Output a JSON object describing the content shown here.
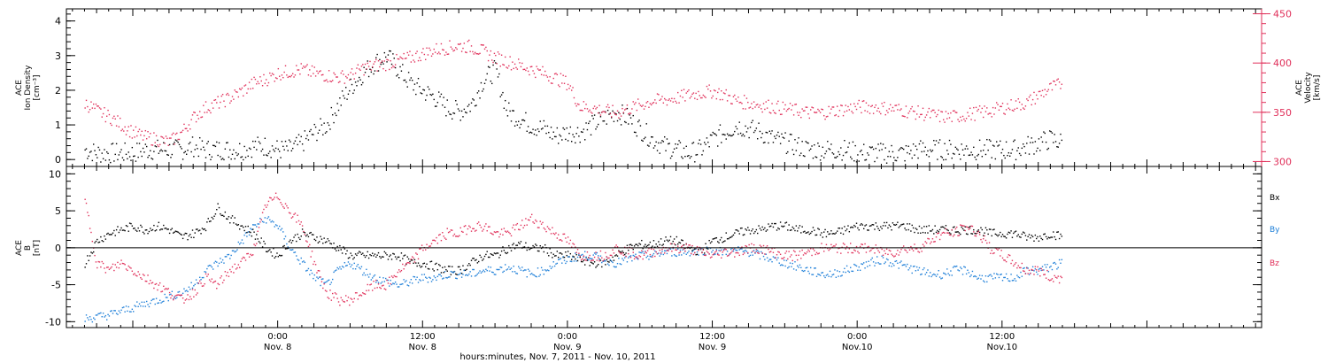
{
  "chart_data": [
    {
      "type": "scatter",
      "panel": "top",
      "ylabel_left_lines": [
        "ACE",
        "Ion Density",
        "[cm⁻³]"
      ],
      "ylabel_right_lines": [
        "ACE",
        "Velocity",
        "[km/s]"
      ],
      "y_left_ticks": [
        "0",
        "1",
        "2",
        "3",
        "4"
      ],
      "y_left_range": [
        -0.2,
        4.35
      ],
      "y_right_ticks": [
        "300",
        "350",
        "400",
        "450"
      ],
      "y_right_range": [
        295,
        455
      ],
      "series": [
        {
          "name": "Ion Density",
          "color": "#000000",
          "axis": "left",
          "x": [
            -16,
            -15,
            -14,
            -13,
            -12,
            -11,
            -10,
            -9,
            -8,
            -7,
            -6,
            -5,
            -4,
            -3,
            -2,
            -1,
            0,
            1,
            2,
            3,
            4,
            5,
            6,
            7,
            8,
            9,
            10,
            11,
            12,
            13,
            14,
            15,
            16,
            17,
            18,
            19,
            20,
            21,
            22,
            23,
            24,
            25,
            26,
            27,
            28,
            29,
            30,
            31,
            32,
            33,
            34,
            35,
            36,
            37,
            38,
            39,
            40,
            41,
            42,
            43,
            44,
            45,
            46,
            47,
            48,
            49,
            50,
            51,
            52,
            53,
            54,
            55,
            56,
            57,
            58,
            59,
            60,
            61,
            62,
            63,
            64,
            65
          ],
          "values": [
            0.3,
            0.2,
            0.2,
            0.2,
            0.2,
            0.3,
            0.3,
            0.3,
            0.3,
            0.4,
            0.3,
            0.3,
            0.3,
            0.3,
            0.4,
            0.4,
            0.3,
            0.3,
            0.5,
            0.8,
            1.0,
            1.6,
            2.1,
            2.5,
            2.8,
            3.0,
            2.6,
            2.2,
            2.0,
            1.8,
            1.5,
            1.4,
            1.6,
            2.3,
            2.6,
            1.4,
            1.2,
            1.0,
            0.9,
            0.7,
            0.8,
            0.8,
            1.0,
            1.2,
            1.4,
            1.2,
            0.9,
            0.6,
            0.4,
            0.3,
            0.2,
            0.3,
            0.6,
            0.8,
            1.0,
            0.9,
            0.8,
            0.6,
            0.5,
            0.4,
            0.3,
            0.3,
            0.3,
            0.3,
            0.2,
            0.2,
            0.2,
            0.2,
            0.2,
            0.3,
            0.3,
            0.3,
            0.3,
            0.3,
            0.3,
            0.3,
            0.3,
            0.3,
            0.4,
            0.5,
            0.6,
            0.5
          ]
        },
        {
          "name": "Velocity",
          "color": "#e0305a",
          "axis": "right",
          "x": [
            -16,
            -15,
            -14,
            -13,
            -12,
            -11,
            -10,
            -9,
            -8,
            -7,
            -6,
            -5,
            -4,
            -3,
            -2,
            -1,
            0,
            1,
            2,
            3,
            4,
            5,
            6,
            7,
            8,
            9,
            10,
            11,
            12,
            13,
            14,
            15,
            16,
            17,
            18,
            19,
            20,
            21,
            22,
            23,
            24,
            25,
            26,
            27,
            28,
            29,
            30,
            31,
            32,
            33,
            34,
            35,
            36,
            37,
            38,
            39,
            40,
            41,
            42,
            43,
            44,
            45,
            46,
            47,
            48,
            49,
            50,
            51,
            52,
            53,
            54,
            55,
            56,
            57,
            58,
            59,
            60,
            61,
            62,
            63,
            64,
            65
          ],
          "values": [
            360,
            352,
            346,
            338,
            330,
            325,
            323,
            320,
            330,
            345,
            355,
            360,
            365,
            372,
            380,
            384,
            390,
            392,
            394,
            390,
            388,
            386,
            388,
            395,
            398,
            400,
            403,
            406,
            410,
            414,
            416,
            418,
            417,
            412,
            406,
            402,
            398,
            394,
            390,
            385,
            380,
            356,
            355,
            352,
            350,
            354,
            358,
            362,
            363,
            365,
            368,
            370,
            372,
            368,
            362,
            360,
            358,
            356,
            354,
            352,
            350,
            350,
            352,
            354,
            356,
            356,
            355,
            354,
            352,
            350,
            348,
            346,
            346,
            348,
            350,
            352,
            355,
            358,
            360,
            368,
            375,
            380
          ]
        }
      ]
    },
    {
      "type": "scatter",
      "panel": "bottom",
      "ylabel_lines": [
        "ACE",
        "B",
        "[nT]"
      ],
      "y_ticks": [
        "-10",
        "-5",
        "0",
        "5",
        "10"
      ],
      "y_range": [
        -10.8,
        11.0
      ],
      "zero_line": true,
      "legend": [
        "Bx",
        "By",
        "Bz"
      ],
      "series": [
        {
          "name": "Bx",
          "color": "#000000",
          "x": [
            -16,
            -15,
            -14,
            -13,
            -12,
            -11,
            -10,
            -9,
            -8,
            -7,
            -6,
            -5,
            -4,
            -3,
            -2,
            -1,
            0,
            1,
            2,
            3,
            4,
            5,
            6,
            7,
            8,
            9,
            10,
            11,
            12,
            13,
            14,
            15,
            16,
            17,
            18,
            19,
            20,
            21,
            22,
            23,
            24,
            25,
            26,
            27,
            28,
            29,
            30,
            31,
            32,
            33,
            34,
            35,
            36,
            37,
            38,
            39,
            40,
            41,
            42,
            43,
            44,
            45,
            46,
            47,
            48,
            49,
            50,
            51,
            52,
            53,
            54,
            55,
            56,
            57,
            58,
            59,
            60,
            61,
            62,
            63,
            64,
            65
          ],
          "values": [
            -2,
            1,
            2,
            2.5,
            3,
            2.5,
            3,
            2.5,
            1.5,
            2,
            3,
            5.5,
            4,
            3,
            2,
            0,
            -1,
            1,
            2,
            1.5,
            1,
            0,
            -1,
            -1,
            -1,
            -1,
            -1,
            -2,
            -2,
            -2.5,
            -3,
            -3,
            -2,
            -1,
            -1,
            0,
            0.5,
            0,
            0,
            -1,
            -1,
            -1.5,
            -2,
            -2,
            -1,
            0,
            0.5,
            0.5,
            1,
            1,
            0,
            -0.5,
            1,
            1.5,
            2,
            2.5,
            2.5,
            3,
            3,
            2.5,
            2.5,
            2,
            2,
            2.5,
            3,
            3,
            3,
            3,
            3,
            2.5,
            2.5,
            2.5,
            2.5,
            2.5,
            2.5,
            2,
            2,
            2,
            1.5,
            1.5,
            2,
            1.5
          ]
        },
        {
          "name": "By",
          "color": "#1e7fd8",
          "x": [
            -16,
            -15,
            -14,
            -13,
            -12,
            -11,
            -10,
            -9,
            -8,
            -7,
            -6,
            -5,
            -4,
            -3,
            -2,
            -1,
            0,
            1,
            2,
            3,
            4,
            5,
            6,
            7,
            8,
            9,
            10,
            11,
            12,
            13,
            14,
            15,
            16,
            17,
            18,
            19,
            20,
            21,
            22,
            23,
            24,
            25,
            26,
            27,
            28,
            29,
            30,
            31,
            32,
            33,
            34,
            35,
            36,
            37,
            38,
            39,
            40,
            41,
            42,
            43,
            44,
            45,
            46,
            47,
            48,
            49,
            50,
            51,
            52,
            53,
            54,
            55,
            56,
            57,
            58,
            59,
            60,
            61,
            62,
            63,
            64,
            65
          ],
          "values": [
            -9.5,
            -9.3,
            -9,
            -8.5,
            -8,
            -7.5,
            -7,
            -6.5,
            -6,
            -5,
            -3,
            -2,
            -1,
            1,
            3,
            4,
            3,
            0,
            -2,
            -4,
            -5,
            -3,
            -2,
            -3,
            -4,
            -4.5,
            -5,
            -4.5,
            -4,
            -4,
            -3.5,
            -3.5,
            -3.5,
            -3,
            -3,
            -2.5,
            -3,
            -3.5,
            -3,
            -2,
            -1.5,
            -1,
            -1,
            -1.5,
            -2,
            -1.5,
            -1,
            -1,
            -0.5,
            -0.5,
            -0.5,
            -0.3,
            -0.3,
            -0.5,
            -0.3,
            -0.5,
            -1,
            -1.5,
            -2,
            -2.5,
            -3,
            -3.5,
            -3.5,
            -3,
            -2.5,
            -2,
            -1.5,
            -2,
            -2.5,
            -3,
            -3.5,
            -3.5,
            -3,
            -3,
            -4,
            -4,
            -4,
            -4,
            -3,
            -3,
            -2.5,
            -2
          ]
        },
        {
          "name": "Bz",
          "color": "#e0305a",
          "x": [
            -16,
            -15,
            -14,
            -13,
            -12,
            -11,
            -10,
            -9,
            -8,
            -7,
            -6,
            -5,
            -4,
            -3,
            -2,
            -1,
            0,
            1,
            2,
            3,
            4,
            5,
            6,
            7,
            8,
            9,
            10,
            11,
            12,
            13,
            14,
            15,
            16,
            17,
            18,
            19,
            20,
            21,
            22,
            23,
            24,
            25,
            26,
            27,
            28,
            29,
            30,
            31,
            32,
            33,
            34,
            35,
            36,
            37,
            38,
            39,
            40,
            41,
            42,
            43,
            44,
            45,
            46,
            47,
            48,
            49,
            50,
            51,
            52,
            53,
            54,
            55,
            56,
            57,
            58,
            59,
            60,
            61,
            62,
            63,
            64,
            65
          ],
          "values": [
            6.5,
            -2,
            -3,
            -2,
            -3,
            -4,
            -5,
            -6,
            -7,
            -6,
            -4,
            -5,
            -3,
            -2,
            0,
            6,
            7,
            5,
            3,
            -2,
            -6,
            -7,
            -7,
            -6,
            -5,
            -5,
            -3,
            -2,
            0,
            1,
            2,
            2,
            3,
            3,
            2,
            2,
            3,
            4,
            3,
            2,
            1,
            -1,
            -1,
            -1,
            0,
            -0.5,
            -1,
            -0.5,
            0,
            0,
            0,
            -0.5,
            -1,
            -0.5,
            -0.5,
            0,
            0,
            -0.5,
            -1,
            -1,
            -0.5,
            0,
            0,
            0,
            0,
            0,
            -0.5,
            -0.5,
            0,
            0,
            1,
            2,
            2,
            3,
            2,
            0,
            -1,
            -2,
            -3,
            -3,
            -4,
            -4
          ]
        }
      ]
    }
  ],
  "x_axis": {
    "range_hours": [
      -17.5,
      81.5
    ],
    "tick_labels": [
      {
        "time": "0:00",
        "day": "Nov. 8"
      },
      {
        "time": "12:00",
        "day": "Nov. 8"
      },
      {
        "time": "0:00",
        "day": "Nov. 9"
      },
      {
        "time": "12:00",
        "day": "Nov. 9"
      },
      {
        "time": "0:00",
        "day": "Nov.10"
      },
      {
        "time": "12:00",
        "day": "Nov.10"
      }
    ],
    "xlabel": "hours:minutes, Nov. 7, 2011 - Nov. 10, 2011"
  }
}
